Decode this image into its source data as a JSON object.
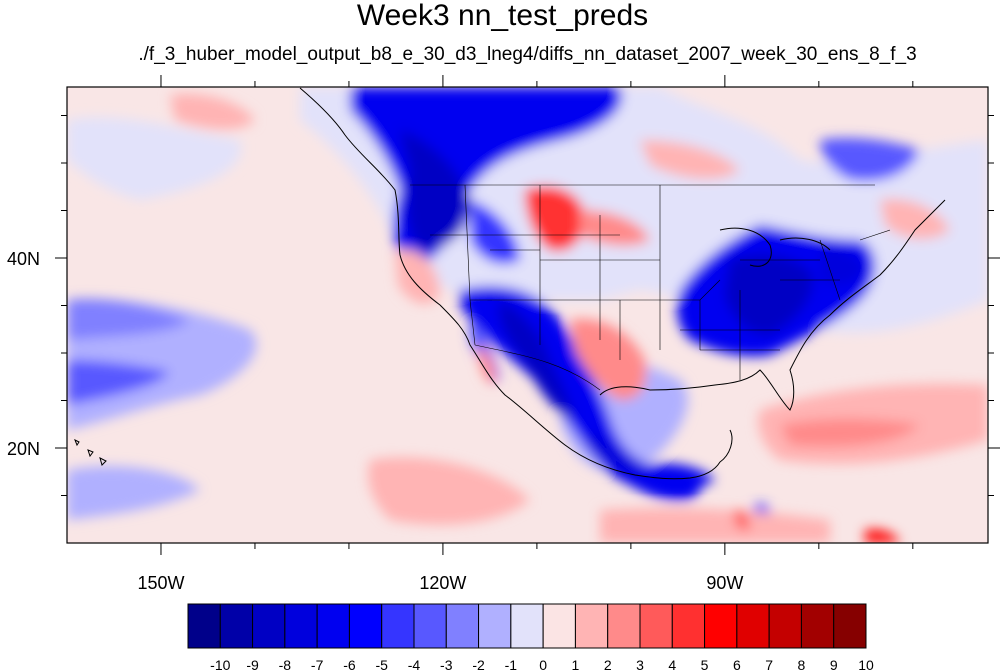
{
  "title": "Week3 nn_test_preds",
  "subtitle": "./f_3_huber_model_output_b8_e_30_d3_lneg4/diffs_nn_dataset_2007_week_30_ens_8_f_3",
  "map": {
    "lon_range": [
      -160,
      -62
    ],
    "lat_range": [
      10,
      58
    ],
    "lon_ticks": [
      {
        "value": -150,
        "label": "150W"
      },
      {
        "value": -120,
        "label": "120W"
      },
      {
        "value": -90,
        "label": "90W"
      }
    ],
    "lat_ticks": [
      {
        "value": 40,
        "label": "40N"
      },
      {
        "value": 20,
        "label": "20N"
      }
    ],
    "background_color": "#f9e6e6"
  },
  "colorbar": {
    "labels": [
      "-10",
      "-9",
      "-8",
      "-7",
      "-6",
      "-5",
      "-4",
      "-3",
      "-2",
      "-1",
      "0",
      "1",
      "2",
      "3",
      "4",
      "5",
      "6",
      "7",
      "8",
      "9",
      "10"
    ],
    "colors": [
      "#00008a",
      "#0000a8",
      "#0000c4",
      "#0000dd",
      "#0000f0",
      "#0000ff",
      "#3535ff",
      "#5858ff",
      "#8080ff",
      "#b0b0ff",
      "#e2e2fa",
      "#fbe4e4",
      "#ffb4b4",
      "#ff8a8a",
      "#ff5a5a",
      "#ff3030",
      "#ff0000",
      "#e00000",
      "#c40000",
      "#a20000",
      "#860000"
    ]
  }
}
